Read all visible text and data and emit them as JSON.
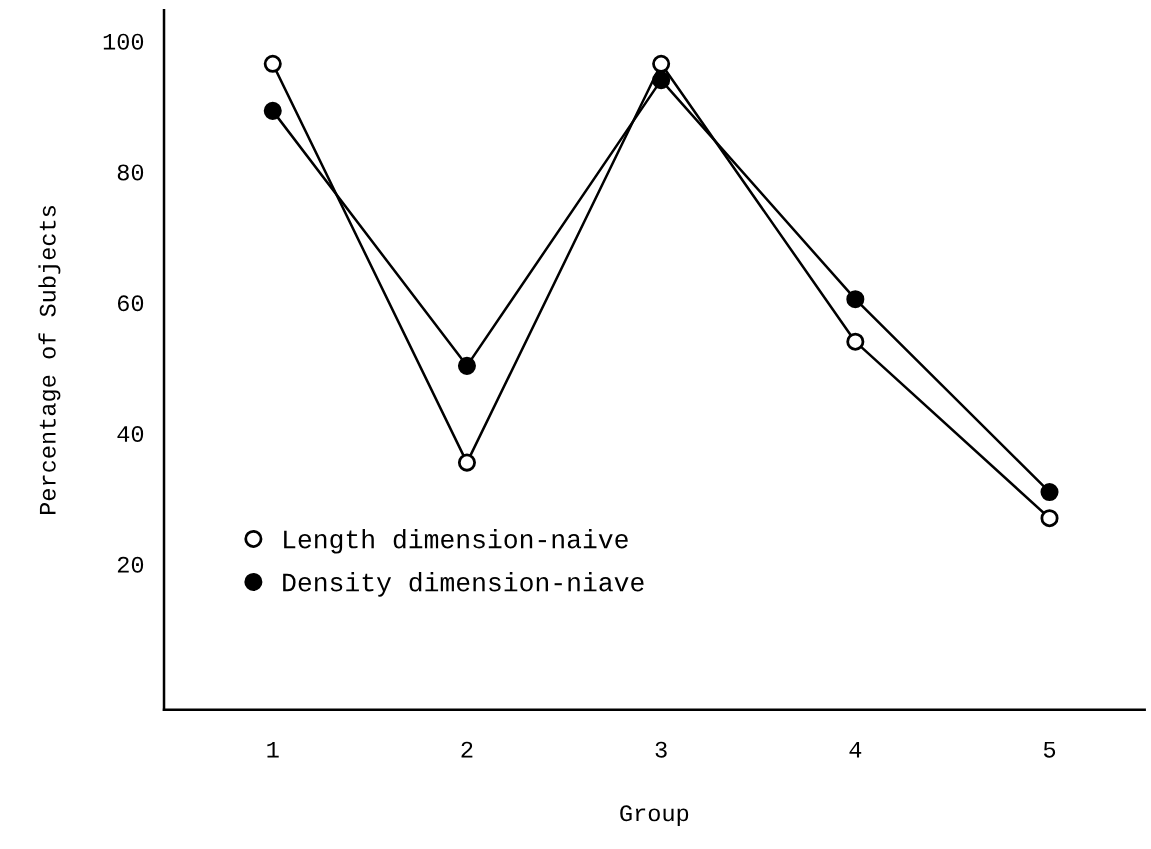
{
  "chart_data": {
    "type": "line",
    "xlabel": "Group",
    "ylabel": "Percentage of Subjects",
    "categories": [
      "1",
      "2",
      "3",
      "4",
      "5"
    ],
    "series": [
      {
        "name": "Length dimension-naive",
        "color": "#ffffff",
        "values": [
          96.5,
          35.5,
          96.5,
          54,
          27
        ]
      },
      {
        "name": "Density dimension-niave",
        "color": "#000000",
        "values": [
          89.3,
          50.3,
          94,
          60.5,
          31
        ]
      }
    ],
    "ylim": [
      -2.3,
      104.7
    ],
    "yticks": [
      20,
      40,
      60,
      80,
      100
    ],
    "grid": false,
    "legend": "left",
    "marker": "circle",
    "line_style": "solid"
  }
}
